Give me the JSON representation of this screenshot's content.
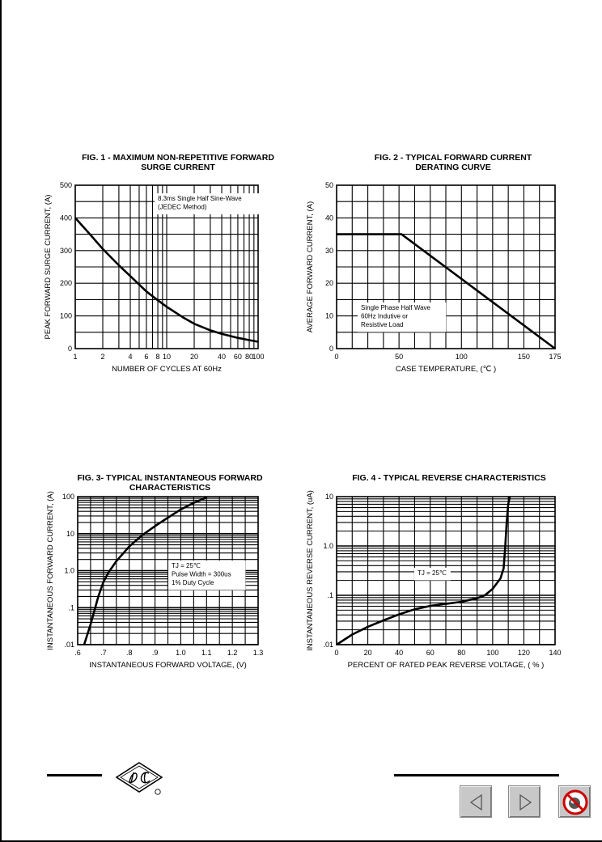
{
  "page": {},
  "chart_data": [
    {
      "id": "fig1",
      "type": "line",
      "title_lines": [
        "FIG. 1 - MAXIMUM NON-REPETITIVE FORWARD",
        "SURGE CURRENT"
      ],
      "xlabel": "NUMBER OF CYCLES AT 60Hz",
      "ylabel": "PEAK FORWARD SURGE CURRENT, (A)",
      "xscale": "log",
      "xlim": [
        1,
        100
      ],
      "ylim": [
        0,
        500
      ],
      "xticks": [
        1,
        2,
        4,
        6,
        8,
        10,
        20,
        40,
        60,
        80,
        100
      ],
      "xtick_labels": [
        "1",
        "2",
        "4",
        "6",
        "8",
        "10",
        "20",
        "40",
        "60",
        "80",
        "100"
      ],
      "yticks": [
        0,
        100,
        200,
        300,
        400,
        500
      ],
      "ytick_labels": [
        "0",
        "100",
        "200",
        "300",
        "400",
        "500"
      ],
      "annotation": [
        "8.3ms Single Half Sine-Wave",
        "(JEDEC Method)"
      ],
      "series": [
        {
          "x": [
            1,
            1.5,
            2,
            3,
            4,
            6,
            8,
            10,
            15,
            20,
            30,
            40,
            60,
            80,
            100
          ],
          "y": [
            400,
            345,
            305,
            255,
            222,
            175,
            148,
            128,
            96,
            76,
            56,
            45,
            33,
            26,
            21
          ]
        }
      ]
    },
    {
      "id": "fig2",
      "type": "line",
      "title_lines": [
        "FIG. 2 - TYPICAL FORWARD CURRENT",
        "DERATING CURVE"
      ],
      "xlabel": "CASE TEMPERATURE, (℃ )",
      "ylabel": "AVERAGE FORWARD  CURRENT, (A)",
      "xlim": [
        0,
        175
      ],
      "ylim": [
        0,
        50
      ],
      "xticks": [
        0,
        50,
        100,
        150,
        175
      ],
      "xtick_labels": [
        "0",
        "50",
        "100",
        "150",
        "175"
      ],
      "xgrid_step": 12.5,
      "yticks": [
        0,
        10,
        20,
        30,
        40,
        50
      ],
      "ytick_labels": [
        "0",
        "10",
        "20",
        "30",
        "40",
        "50"
      ],
      "annotation": [
        "Single Phase Half Wave",
        "60Hz Indutive or",
        "Resistive Load"
      ],
      "series": [
        {
          "x": [
            0,
            52,
            175
          ],
          "y": [
            35,
            35,
            0
          ]
        }
      ]
    },
    {
      "id": "fig3",
      "type": "line",
      "title_lines": [
        "FIG. 3- TYPICAL INSTANTANEOUS FORWARD",
        "CHARACTERISTICS"
      ],
      "xlabel": "INSTANTANEOUS FORWARD VOLTAGE, (V)",
      "ylabel": "INSTANTANEOUS FORWARD CURRENT, (A)",
      "yscale": "log",
      "xlim": [
        0.6,
        1.3
      ],
      "ylim": [
        0.01,
        100
      ],
      "xticks": [
        0.6,
        0.7,
        0.8,
        0.9,
        1.0,
        1.1,
        1.2,
        1.3
      ],
      "xtick_labels": [
        ".6",
        ".7",
        ".8",
        ".9",
        "1.0",
        "1.1",
        "1.2",
        "1.3"
      ],
      "yticks": [
        0.01,
        0.1,
        1,
        10,
        100
      ],
      "ytick_labels": [
        ".01",
        ".1",
        "1.0",
        "10",
        "100"
      ],
      "annotation": [
        "TJ = 25℃",
        "Pulse Width = 300us",
        "1% Duty Cycle"
      ],
      "series": [
        {
          "x": [
            0.625,
            0.65,
            0.68,
            0.7,
            0.72,
            0.75,
            0.8,
            0.85,
            0.9,
            0.95,
            1.0,
            1.05,
            1.1
          ],
          "y": [
            0.01,
            0.035,
            0.2,
            0.5,
            0.9,
            1.8,
            4.5,
            9,
            16,
            27,
            45,
            68,
            95
          ]
        }
      ]
    },
    {
      "id": "fig4",
      "type": "line",
      "title_lines": [
        "FIG. 4 - TYPICAL REVERSE CHARACTERISTICS"
      ],
      "xlabel": "PERCENT OF RATED PEAK REVERSE VOLTAGE, ( % )",
      "ylabel": "INSTANTANEOUS REVERSE CURRENT, (uA)",
      "yscale": "log",
      "xlim": [
        0,
        140
      ],
      "ylim": [
        0.01,
        10
      ],
      "xticks": [
        0,
        20,
        40,
        60,
        80,
        100,
        120,
        140
      ],
      "xtick_labels": [
        "0",
        "20",
        "40",
        "60",
        "80",
        "100",
        "120",
        "140"
      ],
      "yticks": [
        0.01,
        0.1,
        1,
        10
      ],
      "ytick_labels": [
        ".01",
        ".1",
        "1.0",
        "10"
      ],
      "annotation": [
        "TJ = 25℃"
      ],
      "series": [
        {
          "x": [
            0,
            10,
            20,
            30,
            40,
            50,
            60,
            70,
            80,
            90,
            95,
            100,
            105,
            107,
            108,
            109,
            110,
            111
          ],
          "y": [
            0.01,
            0.016,
            0.023,
            0.031,
            0.041,
            0.052,
            0.061,
            0.067,
            0.074,
            0.087,
            0.1,
            0.135,
            0.22,
            0.35,
            0.9,
            3,
            7,
            10
          ]
        }
      ]
    }
  ],
  "nav": {
    "prev_icon": "prev-arrow-icon",
    "next_icon": "next-arrow-icon",
    "exit_icon": "no-exit-icon"
  }
}
